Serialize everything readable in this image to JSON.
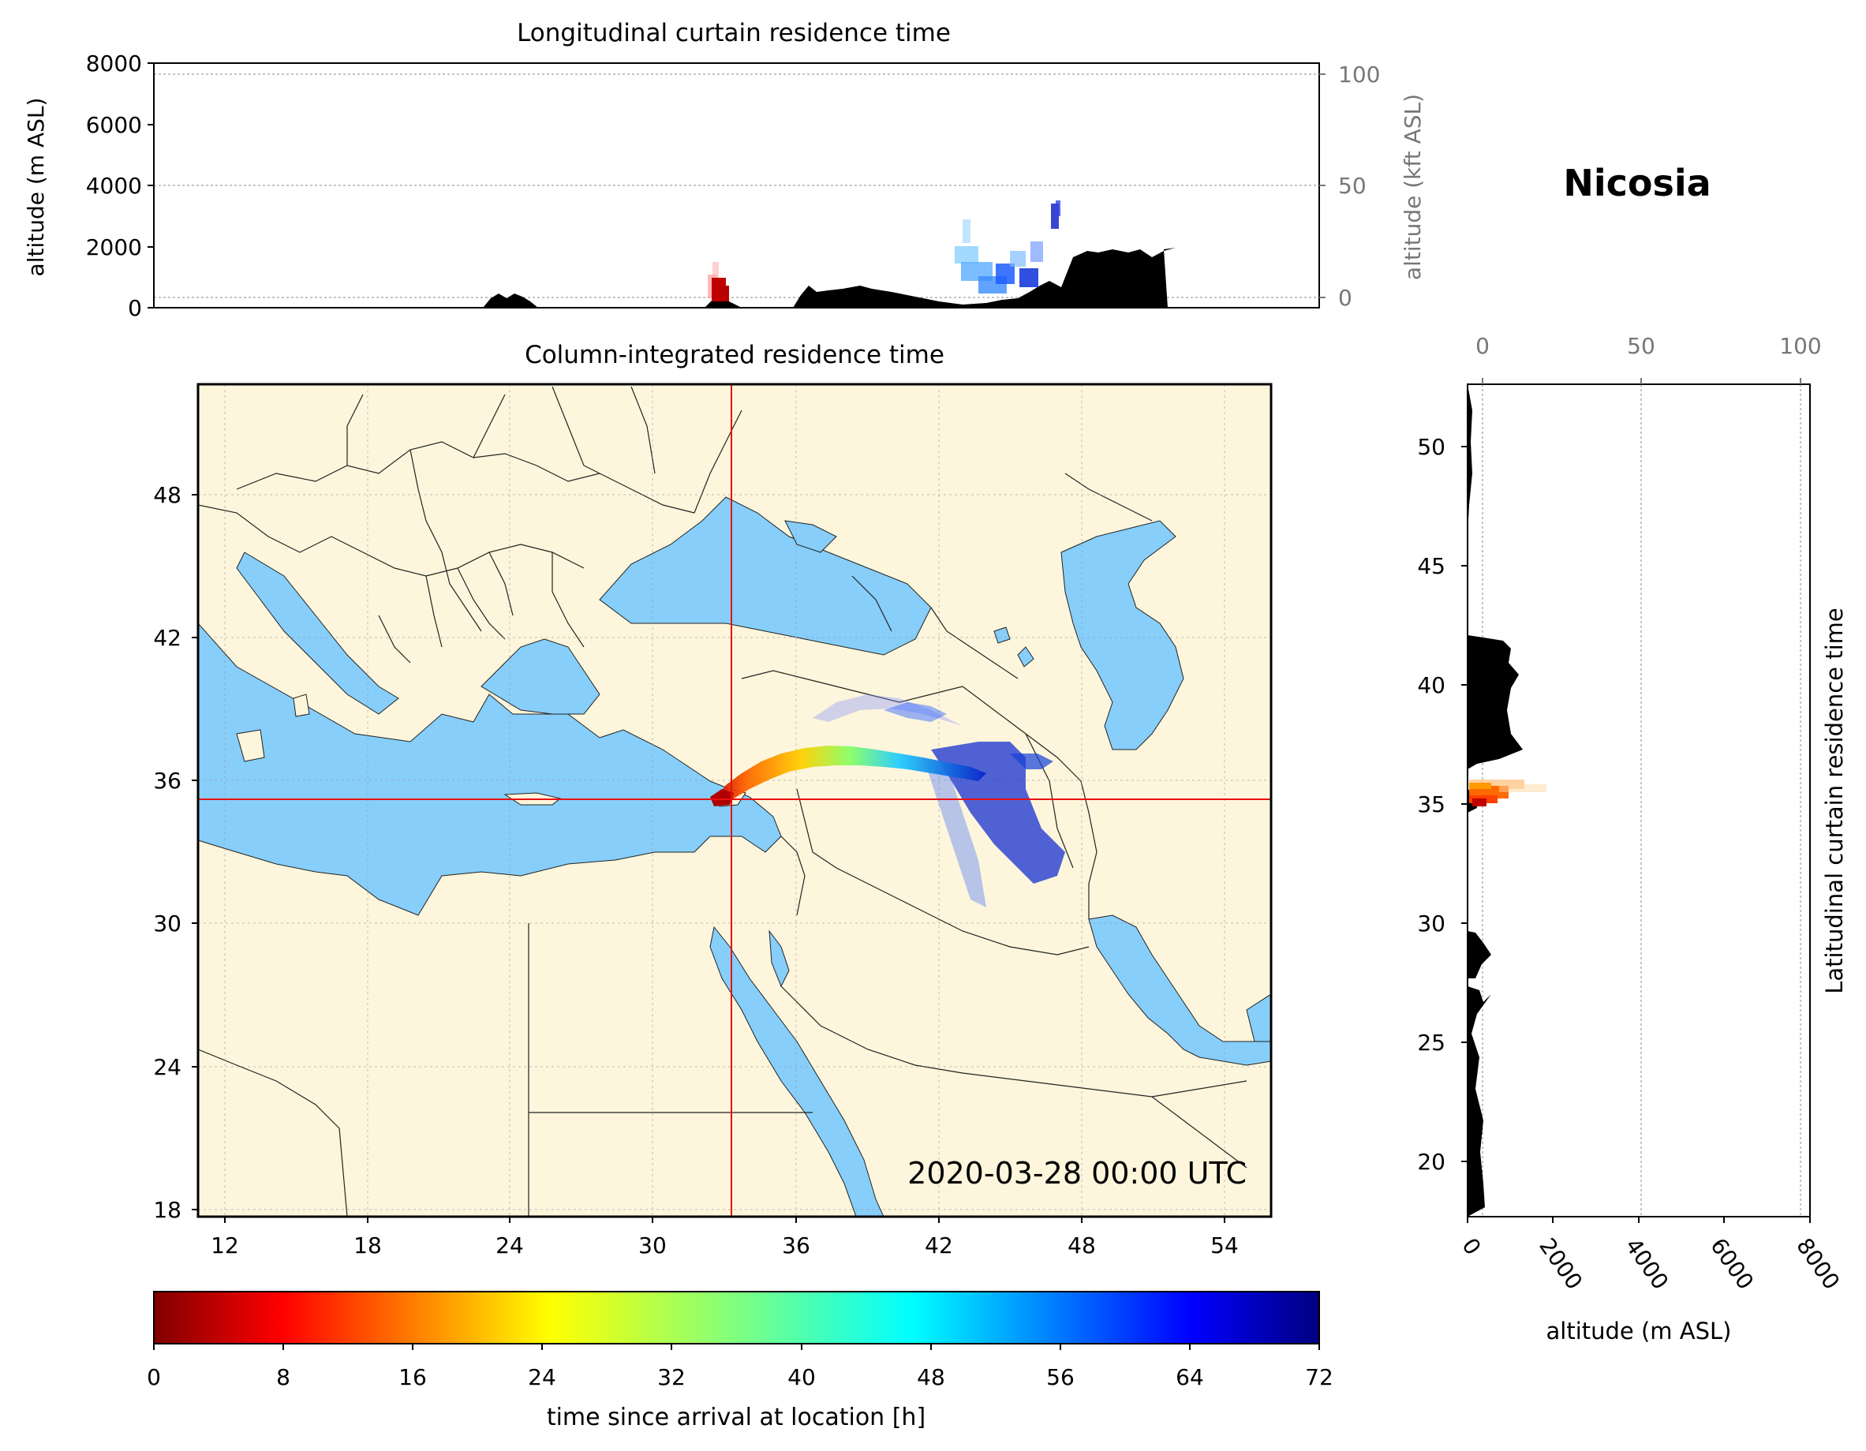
{
  "station": "Nicosia",
  "top_panel": {
    "title": "Longitudinal curtain residence time",
    "ylabel_left": "altitude (m ASL)",
    "ylabel_right": "altitude (kft ASL)",
    "y_ticks_m": [
      "0",
      "2000",
      "4000",
      "6000",
      "8000"
    ],
    "y_ticks_kft": [
      "0",
      "50",
      "100"
    ]
  },
  "map_panel": {
    "title": "Column-integrated residence time",
    "timestamp": "2020-03-28 00:00 UTC",
    "x_ticks": [
      "12",
      "18",
      "24",
      "30",
      "36",
      "42",
      "48",
      "54"
    ],
    "y_ticks": [
      "18",
      "24",
      "30",
      "36",
      "42",
      "48"
    ],
    "lon_range": [
      10.9,
      55.9
    ],
    "lat_range": [
      17.9,
      52.8
    ],
    "site": {
      "lon": 33.4,
      "lat": 35.2
    },
    "colors": {
      "land": "#fdf6dc",
      "water": "#87cefa",
      "border": "#222222",
      "crosshair": "#e81010"
    }
  },
  "right_panel": {
    "ylabel": "Latitudinal curtain residence time",
    "xlabel": "altitude (m ASL)",
    "x_ticks_m": [
      "0",
      "2000",
      "4000",
      "6000",
      "8000"
    ],
    "x_ticks_kft": [
      "0",
      "50",
      "100"
    ],
    "y_ticks": [
      "20",
      "25",
      "30",
      "35",
      "40",
      "45",
      "50"
    ]
  },
  "colorbar": {
    "label": "time since arrival at location [h]",
    "ticks": [
      "0",
      "8",
      "16",
      "24",
      "32",
      "40",
      "48",
      "56",
      "64",
      "72"
    ],
    "range": [
      0,
      72
    ],
    "colormap": "jet_r"
  }
}
